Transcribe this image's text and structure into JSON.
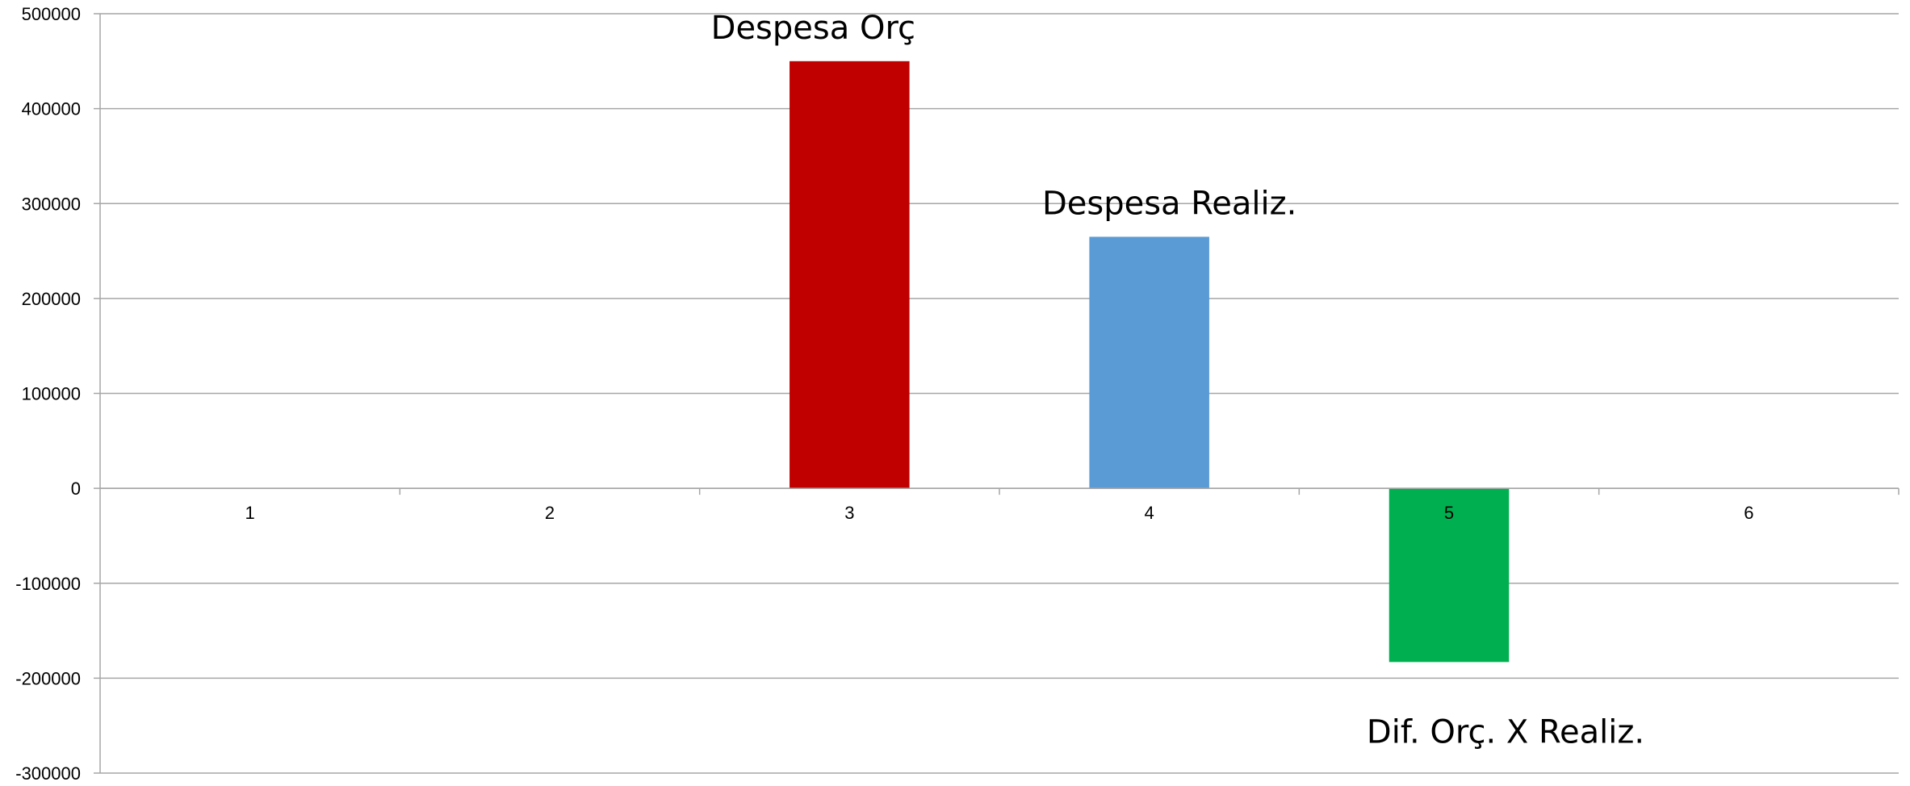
{
  "chart_data": {
    "type": "bar",
    "categories": [
      "1",
      "2",
      "3",
      "4",
      "5",
      "6"
    ],
    "values": [
      0,
      0,
      450000,
      265000,
      -183000,
      0
    ],
    "bar_colors": [
      "#c00000",
      "#c00000",
      "#c00000",
      "#5b9bd5",
      "#00b050",
      "#c00000"
    ],
    "data_labels": [
      "",
      "",
      "Despesa Orç",
      "Despesa Realiz.",
      "Dif. Orç. X Realiz.",
      ""
    ],
    "ylim": [
      -300000,
      500000
    ],
    "yticks": [
      500000,
      400000,
      300000,
      200000,
      100000,
      0,
      -100000,
      -200000,
      -300000
    ],
    "ytick_labels": [
      "500000",
      "400000",
      "300000",
      "200000",
      "100000",
      "0",
      "-100000",
      "-200000",
      "-300000"
    ],
    "grid": true,
    "legend": "none"
  }
}
